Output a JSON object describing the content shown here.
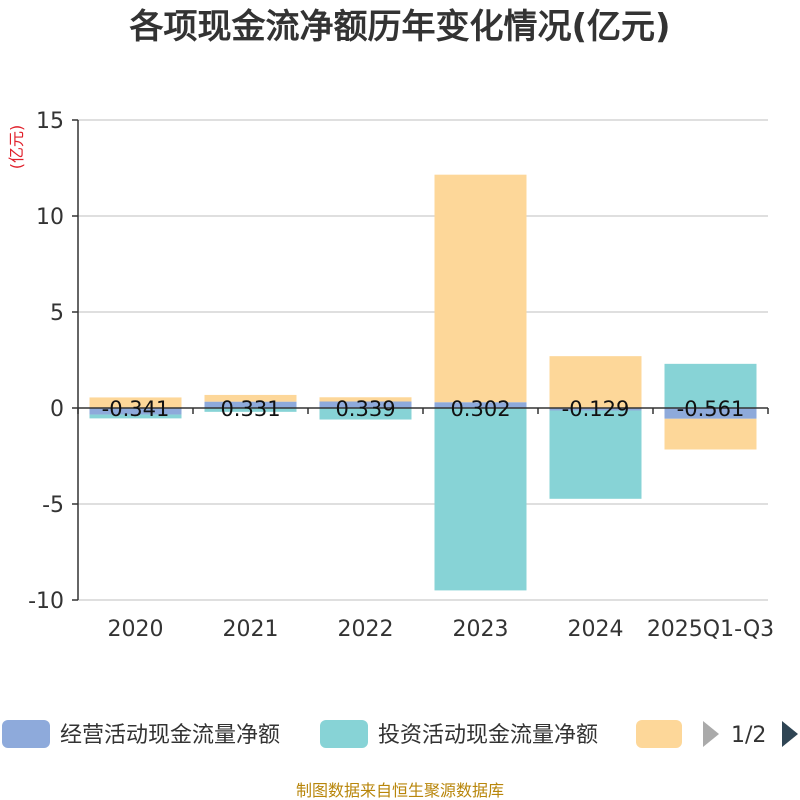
{
  "chart_data": {
    "type": "bar",
    "stacked": true,
    "title": "各项现金流净额历年变化情况(亿元)",
    "ylabel": "(亿元)",
    "ylim": [
      -10,
      15
    ],
    "yticks": [
      15,
      10,
      5,
      0,
      -5,
      -10
    ],
    "categories": [
      "2020",
      "2021",
      "2022",
      "2023",
      "2024",
      "2025Q1-Q3"
    ],
    "series": [
      {
        "name": "经营活动现金流量净额",
        "color": "#8eaadb",
        "values": [
          -0.341,
          0.331,
          0.339,
          0.302,
          -0.129,
          -0.561
        ]
      },
      {
        "name": "投资活动现金流量净额",
        "color": "#87d3d6",
        "values": [
          -0.2,
          -0.2,
          -0.6,
          -9.5,
          -4.6,
          2.3
        ]
      },
      {
        "name": "",
        "color": "#fdd799",
        "values": [
          0.55,
          0.35,
          0.22,
          11.85,
          2.7,
          -1.6
        ]
      }
    ],
    "data_labels": [
      "-0.341",
      "0.331",
      "0.339",
      "0.302",
      "-0.129",
      "-0.561"
    ]
  },
  "legend": {
    "page": "1/2"
  },
  "source": "制图数据来自恒生聚源数据库"
}
